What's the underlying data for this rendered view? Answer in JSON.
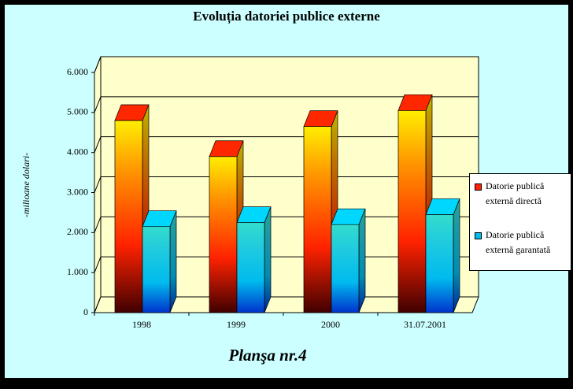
{
  "chart_data": {
    "type": "bar3d",
    "title": "Evoluția datoriei publice externe",
    "y_label": "-milioane dolari-",
    "caption": "Planşa nr.4",
    "categories": [
      "1998",
      "1999",
      "2000",
      "31.07.2001"
    ],
    "series": [
      {
        "name": "Datorie publică externă directă",
        "color": "#ff2200",
        "values": [
          4800,
          3900,
          4650,
          5050
        ]
      },
      {
        "name": "Datorie publică externă garantată",
        "color": "#00bbee",
        "values": [
          2150,
          2250,
          2200,
          2450
        ]
      }
    ],
    "ylim": [
      0,
      6000
    ],
    "yticks": [
      {
        "value": 0,
        "label": "0"
      },
      {
        "value": 1000,
        "label": "1.000"
      },
      {
        "value": 2000,
        "label": "2.000"
      },
      {
        "value": 3000,
        "label": "3.000"
      },
      {
        "value": 4000,
        "label": "4.000"
      },
      {
        "value": 5000,
        "label": "5.000"
      },
      {
        "value": 6000,
        "label": "6.000"
      }
    ],
    "grid": true
  }
}
